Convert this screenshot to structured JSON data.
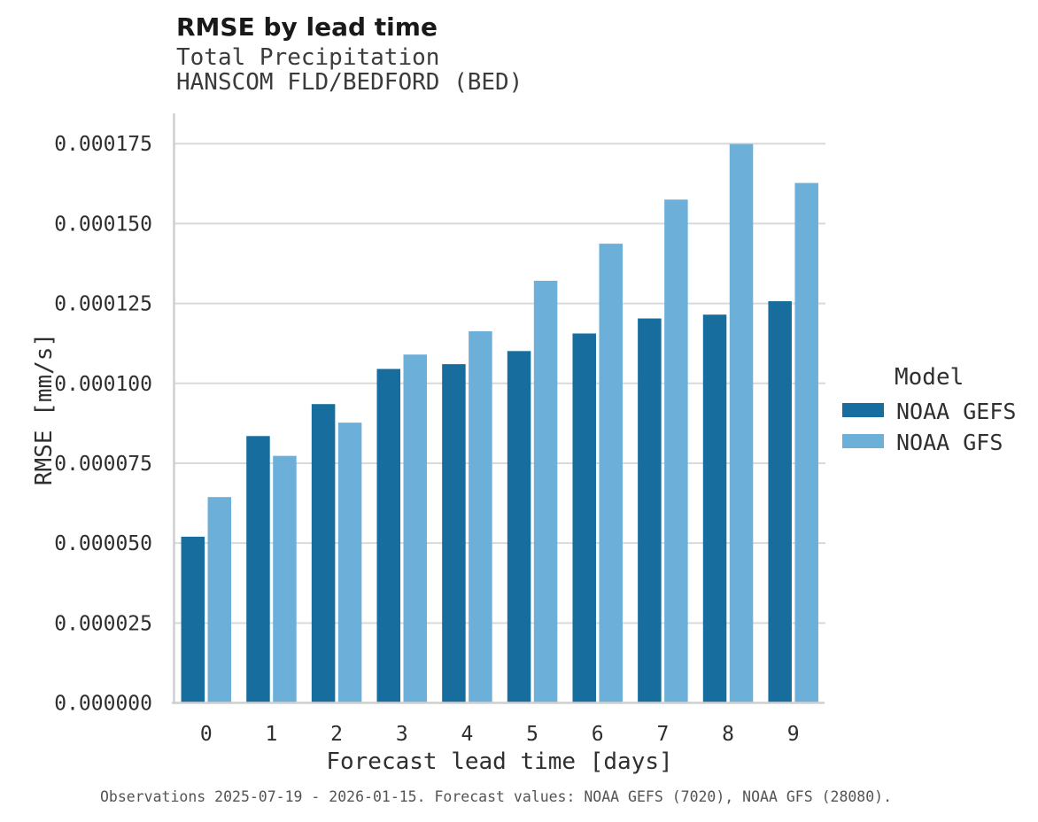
{
  "header": {
    "title": "RMSE by lead time",
    "subtitle_line1": "Total Precipitation",
    "subtitle_line2": "HANSCOM FLD/BEDFORD (BED)"
  },
  "chart_data": {
    "type": "bar",
    "title": "RMSE by lead time",
    "subtitle": [
      "Total Precipitation",
      "HANSCOM FLD/BEDFORD (BED)"
    ],
    "xlabel": "Forecast lead time [days]",
    "ylabel": "RMSE [mm/s]",
    "categories": [
      "0",
      "1",
      "2",
      "3",
      "4",
      "5",
      "6",
      "7",
      "8",
      "9"
    ],
    "series": [
      {
        "name": "NOAA GEFS",
        "color": "#176e9e",
        "values": [
          5.2e-05,
          8.35e-05,
          9.35e-05,
          0.0001045,
          0.000106,
          0.0001101,
          0.0001156,
          0.0001203,
          0.0001215,
          0.0001257
        ]
      },
      {
        "name": "NOAA GFS",
        "color": "#6cb0d9",
        "values": [
          6.44e-05,
          7.73e-05,
          8.77e-05,
          0.000109,
          0.0001163,
          0.0001321,
          0.0001437,
          0.0001575,
          0.0001749,
          0.0001627
        ]
      }
    ],
    "ylim": [
      0,
      0.000175
    ],
    "yticks": [
      0,
      2.5e-05,
      5e-05,
      7.5e-05,
      0.0001,
      0.000125,
      0.00015,
      0.000175
    ],
    "ytick_labels": [
      "0.000000",
      "0.000025",
      "0.000050",
      "0.000075",
      "0.000100",
      "0.000125",
      "0.000150",
      "0.000175"
    ],
    "grid": "horizontal",
    "grid_color": "#d9d9d9",
    "spine_color": "#cfcfcf",
    "legend_position": "right"
  },
  "legend": {
    "title": "Model",
    "items": [
      {
        "label": "NOAA GEFS",
        "color": "#176e9e"
      },
      {
        "label": "NOAA GFS",
        "color": "#6cb0d9"
      }
    ]
  },
  "caption": {
    "text": "Observations 2025-07-19 - 2026-01-15. Forecast values: NOAA GEFS (7020), NOAA GFS (28080)."
  }
}
